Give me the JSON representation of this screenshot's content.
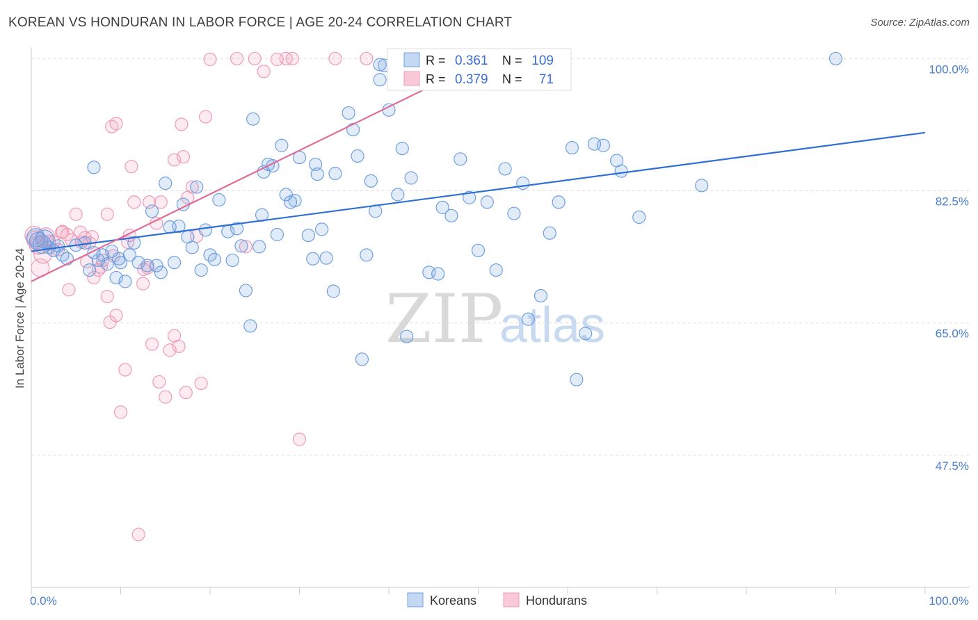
{
  "title": "KOREAN VS HONDURAN IN LABOR FORCE | AGE 20-24 CORRELATION CHART",
  "source": "Source: ZipAtlas.com",
  "watermark": {
    "zip": "ZIP",
    "atlas": "atlas"
  },
  "colors": {
    "koreans": "#6f9fe0",
    "koreans_line": "#2f6fd4",
    "hondurans": "#f09ab8",
    "hondurans_line": "#e06c98"
  },
  "chart_data": {
    "type": "scatter",
    "ylabel": "In Labor Force | Age 20-24",
    "xlim": [
      0,
      100
    ],
    "ylim": [
      30,
      101.5
    ],
    "y_ticks": [
      {
        "value": 100,
        "label": "100.0%"
      },
      {
        "value": 82.5,
        "label": "82.5%"
      },
      {
        "value": 65,
        "label": "65.0%"
      },
      {
        "value": 47.5,
        "label": "47.5%"
      }
    ],
    "x_ticks": [
      {
        "value": 0,
        "label": "0.0%"
      },
      {
        "value": 100,
        "label": "100.0%"
      }
    ],
    "grid": true,
    "legend": {
      "placement": "top-center",
      "rows": [
        {
          "r_label": "R =",
          "r_value": "0.361",
          "n_label": "N =",
          "n_value": "109"
        },
        {
          "r_label": "R =",
          "r_value": "0.379",
          "n_label": "N =",
          "n_value": "71"
        }
      ]
    },
    "series": [
      {
        "name": "Koreans",
        "trend": [
          [
            0,
            74.5
          ],
          [
            100,
            90.2
          ]
        ],
        "points": [
          [
            0.5,
            76.3
          ],
          [
            0.8,
            75.8
          ],
          [
            1.2,
            75.4
          ],
          [
            1.5,
            76.1
          ],
          [
            2.0,
            75.0
          ],
          [
            2.5,
            74.6
          ],
          [
            3.0,
            75.2
          ],
          [
            3.5,
            74.0
          ],
          [
            4.0,
            73.5
          ],
          [
            5.0,
            75.3
          ],
          [
            6.0,
            75.6
          ],
          [
            6.5,
            72.0
          ],
          [
            7.0,
            74.3
          ],
          [
            7.5,
            73.3
          ],
          [
            8.0,
            74.0
          ],
          [
            8.5,
            72.8
          ],
          [
            9.0,
            74.5
          ],
          [
            9.5,
            71.0
          ],
          [
            10.0,
            73.0
          ],
          [
            10.5,
            70.5
          ],
          [
            11.0,
            74.0
          ],
          [
            11.5,
            75.6
          ],
          [
            12.0,
            73.0
          ],
          [
            13.0,
            72.6
          ],
          [
            13.5,
            79.8
          ],
          [
            14.0,
            72.6
          ],
          [
            14.5,
            71.7
          ],
          [
            15.0,
            83.5
          ],
          [
            15.5,
            77.7
          ],
          [
            16.0,
            73.0
          ],
          [
            16.5,
            77.8
          ],
          [
            17.0,
            80.7
          ],
          [
            17.5,
            76.4
          ],
          [
            18.0,
            75.0
          ],
          [
            18.5,
            83.0
          ],
          [
            19.0,
            72.0
          ],
          [
            19.5,
            77.3
          ],
          [
            20.0,
            74.0
          ],
          [
            20.5,
            73.4
          ],
          [
            21.0,
            81.3
          ],
          [
            22.0,
            77.1
          ],
          [
            22.5,
            73.3
          ],
          [
            23.0,
            77.5
          ],
          [
            23.5,
            75.2
          ],
          [
            24.0,
            69.3
          ],
          [
            24.5,
            64.6
          ],
          [
            24.8,
            92.0
          ],
          [
            25.5,
            75.1
          ],
          [
            25.8,
            79.3
          ],
          [
            26.0,
            85.0
          ],
          [
            26.5,
            86.0
          ],
          [
            27.0,
            85.8
          ],
          [
            27.5,
            76.7
          ],
          [
            28.0,
            88.5
          ],
          [
            28.5,
            82.0
          ],
          [
            29.0,
            81.0
          ],
          [
            29.5,
            81.2
          ],
          [
            30.0,
            86.9
          ],
          [
            31.0,
            76.6
          ],
          [
            31.5,
            73.5
          ],
          [
            31.8,
            86.0
          ],
          [
            32.0,
            84.7
          ],
          [
            32.5,
            77.4
          ],
          [
            33.0,
            73.6
          ],
          [
            33.8,
            69.2
          ],
          [
            34.0,
            84.8
          ],
          [
            35.5,
            92.8
          ],
          [
            36.0,
            90.6
          ],
          [
            36.5,
            87.1
          ],
          [
            37.0,
            60.2
          ],
          [
            37.5,
            74.0
          ],
          [
            38.0,
            83.8
          ],
          [
            38.5,
            79.8
          ],
          [
            39.0,
            99.2
          ],
          [
            39.5,
            99.1
          ],
          [
            40.0,
            93.2
          ],
          [
            41.0,
            82.0
          ],
          [
            41.5,
            88.1
          ],
          [
            42.0,
            63.2
          ],
          [
            42.5,
            84.2
          ],
          [
            44.5,
            71.7
          ],
          [
            45.5,
            71.5
          ],
          [
            46.0,
            80.3
          ],
          [
            47.0,
            79.2
          ],
          [
            48.0,
            86.7
          ],
          [
            49.0,
            81.6
          ],
          [
            50.0,
            74.6
          ],
          [
            51.0,
            81.0
          ],
          [
            52.0,
            72.0
          ],
          [
            53.0,
            85.4
          ],
          [
            54.0,
            79.5
          ],
          [
            55.0,
            83.5
          ],
          [
            57.0,
            68.6
          ],
          [
            58.0,
            76.9
          ],
          [
            59.0,
            81.0
          ],
          [
            60.5,
            88.2
          ],
          [
            61.0,
            57.5
          ],
          [
            62.0,
            63.6
          ],
          [
            63.0,
            88.7
          ],
          [
            64.0,
            88.5
          ],
          [
            65.5,
            86.5
          ],
          [
            66.0,
            85.1
          ],
          [
            68.0,
            79.0
          ],
          [
            75.0,
            83.2
          ],
          [
            90.0,
            100.0
          ],
          [
            7.0,
            85.6
          ],
          [
            9.8,
            73.5
          ],
          [
            39.0,
            97.2
          ],
          [
            55.6,
            65.5
          ]
        ]
      },
      {
        "name": "Hondurans",
        "trend": [
          [
            0,
            70.5
          ],
          [
            50,
            99.4
          ]
        ],
        "points": [
          [
            0.3,
            76.6
          ],
          [
            0.5,
            76.0
          ],
          [
            0.8,
            75.3
          ],
          [
            1.0,
            72.3
          ],
          [
            1.3,
            74.1
          ],
          [
            1.6,
            76.4
          ],
          [
            2.0,
            75.8
          ],
          [
            2.5,
            75.7
          ],
          [
            3.0,
            74.7
          ],
          [
            3.5,
            77.1
          ],
          [
            4.0,
            76.7
          ],
          [
            4.5,
            76.0
          ],
          [
            5.0,
            79.4
          ],
          [
            5.5,
            77.0
          ],
          [
            6.0,
            76.3
          ],
          [
            6.5,
            75.6
          ],
          [
            7.0,
            71.0
          ],
          [
            7.5,
            72.0
          ],
          [
            8.0,
            73.3
          ],
          [
            8.5,
            68.5
          ],
          [
            8.8,
            65.1
          ],
          [
            9.0,
            91.0
          ],
          [
            9.5,
            91.4
          ],
          [
            9.5,
            66.0
          ],
          [
            10.0,
            53.2
          ],
          [
            10.5,
            58.8
          ],
          [
            11.0,
            76.6
          ],
          [
            11.2,
            85.7
          ],
          [
            11.5,
            81.0
          ],
          [
            12.0,
            37.0
          ],
          [
            12.5,
            70.2
          ],
          [
            13.0,
            72.3
          ],
          [
            13.5,
            62.2
          ],
          [
            14.0,
            78.2
          ],
          [
            14.5,
            81.0
          ],
          [
            15.0,
            55.2
          ],
          [
            15.5,
            61.4
          ],
          [
            16.0,
            63.3
          ],
          [
            16.5,
            61.9
          ],
          [
            16.8,
            91.3
          ],
          [
            17.0,
            87.0
          ],
          [
            17.3,
            55.8
          ],
          [
            17.5,
            81.6
          ],
          [
            18.0,
            83.0
          ],
          [
            18.5,
            76.5
          ],
          [
            19.5,
            92.3
          ],
          [
            20.0,
            99.9
          ],
          [
            23.0,
            100.0
          ],
          [
            24.0,
            75.1
          ],
          [
            25.0,
            100.0
          ],
          [
            26.0,
            98.3
          ],
          [
            27.5,
            99.9
          ],
          [
            28.5,
            100.0
          ],
          [
            30.0,
            49.6
          ],
          [
            34.0,
            100.0
          ],
          [
            37.5,
            100.0
          ],
          [
            16.0,
            86.6
          ],
          [
            8.5,
            79.4
          ],
          [
            6.8,
            76.4
          ],
          [
            9.2,
            73.9
          ],
          [
            3.4,
            77.0
          ],
          [
            5.6,
            75.7
          ],
          [
            12.6,
            72.1
          ],
          [
            14.3,
            57.2
          ],
          [
            19.0,
            57.0
          ],
          [
            4.2,
            69.4
          ],
          [
            6.2,
            73.1
          ],
          [
            7.8,
            72.4
          ],
          [
            10.8,
            75.7
          ],
          [
            13.2,
            81.0
          ],
          [
            29.2,
            100.0
          ]
        ]
      }
    ]
  }
}
